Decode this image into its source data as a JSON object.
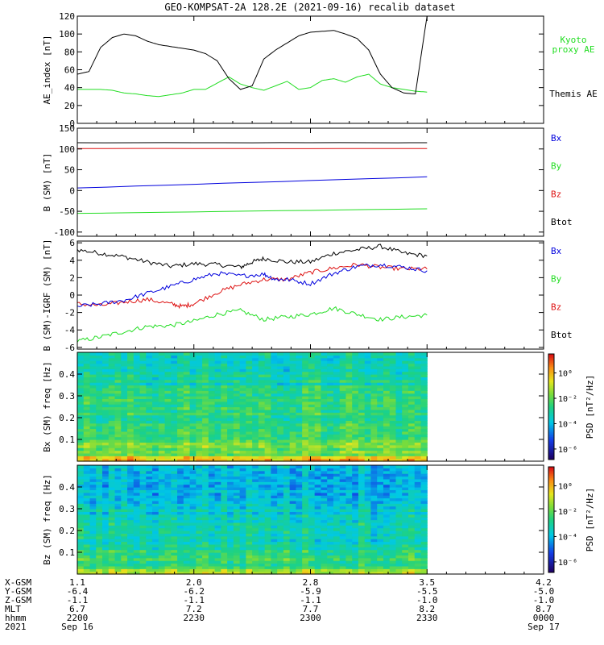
{
  "title": "GEO-KOMPSAT-2A 128.2E (2021-09-16) recalib dataset",
  "colors": {
    "black": "#000000",
    "green": "#22dd22",
    "red": "#dd1111",
    "blue": "#0000dd"
  },
  "chart_data": [
    {
      "type": "line",
      "ylabel": "AE_index [nT]",
      "ylim": [
        0,
        120
      ],
      "yticks": [
        0,
        20,
        40,
        60,
        80,
        100,
        120
      ],
      "series": [
        {
          "name": "Kyoto proxy AE",
          "color": "#22dd22",
          "x": [
            0,
            3,
            6,
            9,
            12,
            15,
            18,
            21,
            24,
            27,
            30,
            33,
            36,
            39,
            42,
            45,
            48,
            51,
            54,
            57,
            60,
            63,
            66,
            69,
            72,
            75,
            78,
            81,
            84,
            87,
            90
          ],
          "y": [
            38,
            38,
            38,
            37,
            34,
            33,
            31,
            30,
            32,
            34,
            38,
            38,
            45,
            52,
            44,
            40,
            37,
            42,
            47,
            38,
            40,
            48,
            50,
            46,
            52,
            55,
            44,
            40,
            38,
            36,
            35
          ]
        },
        {
          "name": "Themis AE",
          "color": "#000000",
          "x": [
            0,
            3,
            6,
            9,
            12,
            15,
            18,
            21,
            24,
            27,
            30,
            33,
            36,
            39,
            42,
            45,
            48,
            51,
            54,
            57,
            60,
            63,
            66,
            69,
            72,
            75,
            78,
            81,
            84,
            87,
            90
          ],
          "y": [
            55,
            58,
            85,
            96,
            100,
            98,
            92,
            88,
            86,
            84,
            82,
            78,
            70,
            50,
            38,
            42,
            72,
            82,
            90,
            98,
            102,
            103,
            104,
            100,
            95,
            82,
            55,
            40,
            34,
            33,
            120
          ]
        }
      ]
    },
    {
      "type": "line",
      "ylabel": "B (SM) [nT]",
      "ylim": [
        -110,
        150
      ],
      "yticks": [
        -100,
        -50,
        0,
        50,
        100,
        150
      ],
      "series": [
        {
          "name": "Bx",
          "color": "#000000",
          "x": [
            0,
            90
          ],
          "y": [
            115,
            115
          ]
        },
        {
          "name": "By",
          "color": "#22dd22",
          "x": [
            0,
            90
          ],
          "y": [
            -55,
            -44
          ]
        },
        {
          "name": "Bz",
          "color": "#dd1111",
          "x": [
            0,
            90
          ],
          "y": [
            101,
            101
          ]
        },
        {
          "name": "Btot",
          "color": "#0000dd",
          "x": [
            0,
            90
          ],
          "y": [
            6,
            33
          ]
        }
      ]
    },
    {
      "type": "line",
      "ylabel": "B (SM)-IGRF (SM) [nT]",
      "ylim": [
        -6.2,
        6.2
      ],
      "yticks": [
        -6,
        -4,
        -2,
        0,
        2,
        4,
        6
      ],
      "series": [
        {
          "name": "Bx",
          "color": "#000000",
          "x": [
            0,
            6,
            12,
            18,
            24,
            30,
            36,
            42,
            45,
            48,
            54,
            60,
            66,
            72,
            78,
            84,
            90
          ],
          "y": [
            5.2,
            4.8,
            4.4,
            3.8,
            3.3,
            3.6,
            3.5,
            3.2,
            3.8,
            4.2,
            3.8,
            3.8,
            4.8,
            5.2,
            5.6,
            4.8,
            4.5
          ]
        },
        {
          "name": "By",
          "color": "#22dd22",
          "x": [
            0,
            6,
            12,
            18,
            24,
            30,
            36,
            42,
            48,
            54,
            60,
            66,
            72,
            78,
            84,
            90
          ],
          "y": [
            -5.3,
            -4.8,
            -4.2,
            -3.6,
            -3.5,
            -3.0,
            -2.2,
            -1.8,
            -2.8,
            -2.5,
            -2.2,
            -1.5,
            -2.2,
            -2.8,
            -2.5,
            -2.3
          ]
        },
        {
          "name": "Bz",
          "color": "#dd1111",
          "x": [
            0,
            6,
            12,
            18,
            24,
            27,
            30,
            36,
            42,
            48,
            54,
            60,
            66,
            72,
            78,
            84,
            90
          ],
          "y": [
            -1.0,
            -1.2,
            -0.8,
            -0.5,
            -1.0,
            -1.3,
            -1.0,
            0.3,
            1.2,
            1.8,
            1.8,
            2.6,
            3.1,
            3.5,
            3.2,
            3.0,
            3.0
          ]
        },
        {
          "name": "Btot",
          "color": "#0000dd",
          "x": [
            0,
            6,
            12,
            18,
            24,
            30,
            36,
            42,
            48,
            51,
            54,
            60,
            66,
            72,
            78,
            84,
            90
          ],
          "y": [
            -1.3,
            -1.0,
            -0.6,
            0.2,
            1.0,
            1.8,
            2.5,
            2.2,
            2.4,
            1.8,
            1.8,
            1.3,
            2.5,
            3.3,
            3.5,
            3.2,
            2.8
          ]
        }
      ]
    },
    {
      "type": "heatmap",
      "ylabel": "Bx (SM) freq [Hz]",
      "ylim": [
        0,
        0.5
      ],
      "yticks": [
        0.1,
        0.2,
        0.3,
        0.4
      ],
      "colorbar": {
        "label": "PSD [nT²/Hz]",
        "ticks": [
          "10⁰",
          "10⁻²",
          "10⁻⁴",
          "10⁻⁶"
        ]
      }
    },
    {
      "type": "heatmap",
      "ylabel": "Bz (SM) freq [Hz]",
      "ylim": [
        0,
        0.5
      ],
      "yticks": [
        0.1,
        0.2,
        0.3,
        0.4
      ],
      "colorbar": {
        "label": "PSD [nT²/Hz]",
        "ticks": [
          "10⁰",
          "10⁻²",
          "10⁻⁴",
          "10⁻⁶"
        ]
      }
    }
  ],
  "axis_rows": {
    "labels": [
      "X-GSM",
      "Y-GSM",
      "Z-GSM",
      "MLT",
      "hhmm",
      "2021"
    ],
    "ticks": [
      {
        "x": 0,
        "vals": [
          "1.1",
          "-6.4",
          "-1.1",
          "6.7",
          "2200",
          "Sep 16"
        ]
      },
      {
        "x": 30,
        "vals": [
          "2.0",
          "-6.2",
          "-1.1",
          "7.2",
          "2230",
          ""
        ]
      },
      {
        "x": 60,
        "vals": [
          "2.8",
          "-5.9",
          "-1.1",
          "7.7",
          "2300",
          ""
        ]
      },
      {
        "x": 90,
        "vals": [
          "3.5",
          "-5.5",
          "-1.0",
          "8.2",
          "2330",
          ""
        ]
      },
      {
        "x": 120,
        "vals": [
          "4.2",
          "-5.0",
          "-1.0",
          "8.7",
          "0000",
          "Sep 17"
        ]
      }
    ]
  }
}
